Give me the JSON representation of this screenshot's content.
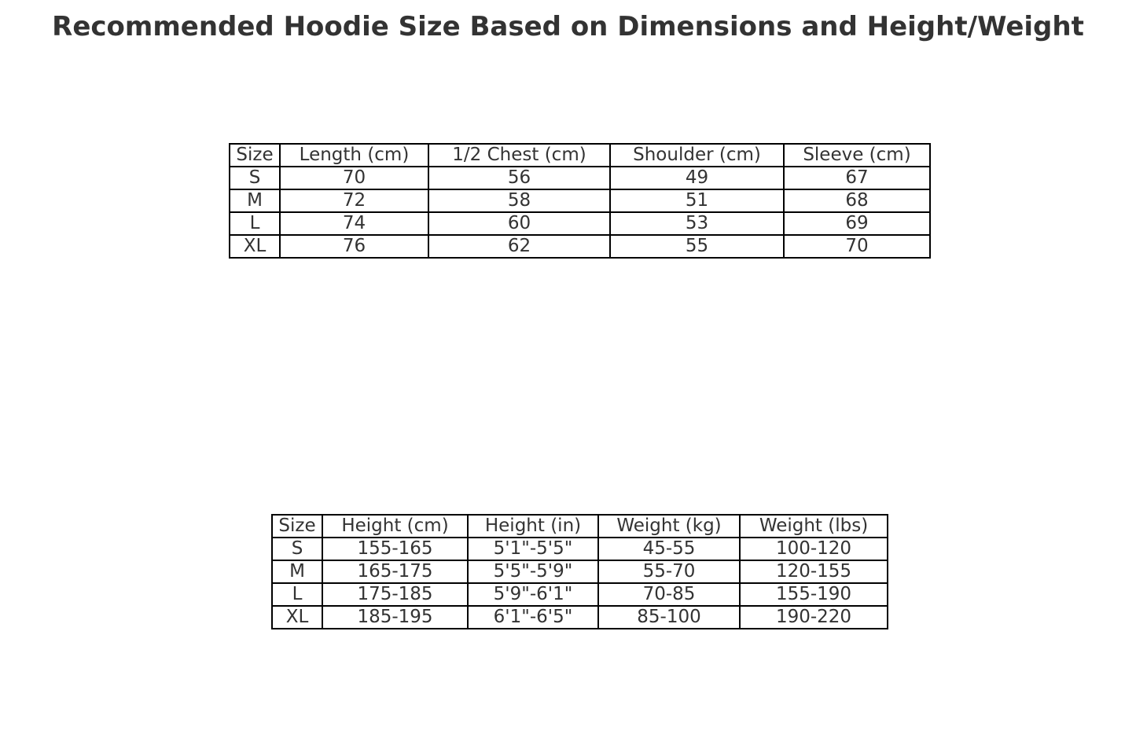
{
  "chart_data": [
    {
      "type": "table",
      "title": "Recommended Hoodie Size Based on Dimensions and Height/Weight",
      "columns": [
        "Size",
        "Length (cm)",
        "1/2 Chest (cm)",
        "Shoulder (cm)",
        "Sleeve (cm)"
      ],
      "rows": [
        [
          "S",
          "70",
          "56",
          "49",
          "67"
        ],
        [
          "M",
          "72",
          "58",
          "51",
          "68"
        ],
        [
          "L",
          "74",
          "60",
          "53",
          "69"
        ],
        [
          "XL",
          "76",
          "62",
          "55",
          "70"
        ]
      ]
    },
    {
      "type": "table",
      "columns": [
        "Size",
        "Height (cm)",
        "Height (in)",
        "Weight (kg)",
        "Weight (lbs)"
      ],
      "rows": [
        [
          "S",
          "155-165",
          "5'1\"-5'5\"",
          "45-55",
          "100-120"
        ],
        [
          "M",
          "165-175",
          "5'5\"-5'9\"",
          "55-70",
          "120-155"
        ],
        [
          "L",
          "175-185",
          "5'9\"-6'1\"",
          "70-85",
          "155-190"
        ],
        [
          "XL",
          "185-195",
          "6'1\"-6'5\"",
          "85-100",
          "190-220"
        ]
      ]
    }
  ]
}
